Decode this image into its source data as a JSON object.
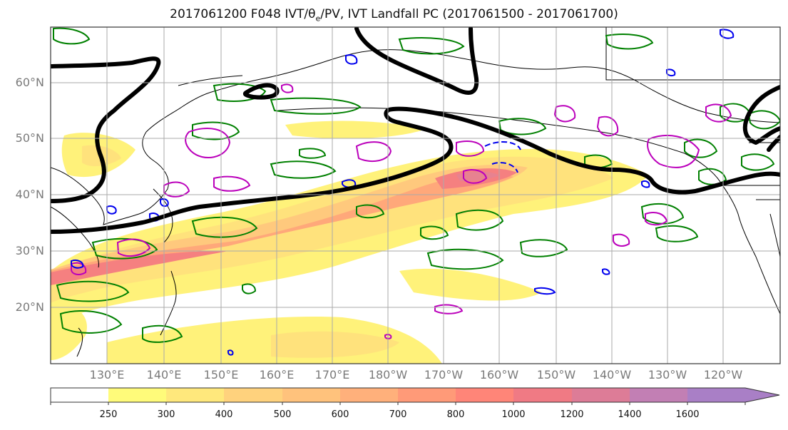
{
  "title": {
    "prefix": "2017061200 F048 IVT/θ",
    "sub": "e",
    "suffix": "/PV, IVT Landfall PC (2017061500 - 2017061700)"
  },
  "lat_labels": [
    "60°N",
    "50°N",
    "40°N",
    "30°N",
    "20°N"
  ],
  "lon_labels": [
    "130°E",
    "140°E",
    "150°E",
    "160°E",
    "170°E",
    "180°W",
    "170°W",
    "160°W",
    "150°W",
    "140°W",
    "130°W",
    "120°W"
  ],
  "colorbar": {
    "ticks": [
      "250",
      "300",
      "400",
      "500",
      "600",
      "700",
      "800",
      "1000",
      "1200",
      "1400",
      "1600"
    ],
    "colors": [
      "#ffffff",
      "#fffb7a",
      "#ffe87c",
      "#ffd27d",
      "#ffc27c",
      "#ffb07b",
      "#ff9a78",
      "#ff8578",
      "#f07a84",
      "#dd7c97",
      "#c27fb4",
      "#a97fc6"
    ]
  },
  "legend_colors": {
    "ivt_landfall_pc": "#000000",
    "theta_e": "#008000",
    "pv_positive": "#bb00bb",
    "pv_negative": "#0000ee"
  }
}
